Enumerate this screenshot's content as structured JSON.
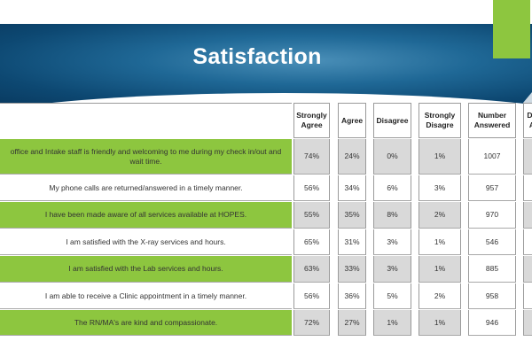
{
  "title": "Satisfaction",
  "colors": {
    "accent_green": "#8dc63f",
    "banner_blue": "#1f6896",
    "cell_gray": "#d9d9d9"
  },
  "table": {
    "headers": [
      "Strongly Agree",
      "Agree",
      "Disagree",
      "Strongly Disagre",
      "Number Answered",
      "Do A"
    ],
    "rows": [
      {
        "statement": "office and Intake staff is friendly and welcoming to me during my check in/out and wait time.",
        "values": [
          "74%",
          "24%",
          "0%",
          "1%",
          "1007",
          ""
        ]
      },
      {
        "statement": "My phone calls are returned/answered  in a timely manner.",
        "values": [
          "56%",
          "34%",
          "6%",
          "3%",
          "957",
          ""
        ]
      },
      {
        "statement": "I have been made aware of all services available at HOPES.",
        "values": [
          "55%",
          "35%",
          "8%",
          "2%",
          "970",
          ""
        ]
      },
      {
        "statement": "I am satisfied with the X-ray services and hours.",
        "values": [
          "65%",
          "31%",
          "3%",
          "1%",
          "546",
          ""
        ]
      },
      {
        "statement": "I am satisfied with the Lab services and hours.",
        "values": [
          "63%",
          "33%",
          "3%",
          "1%",
          "885",
          ""
        ]
      },
      {
        "statement": "I am able to receive a Clinic appointment  in a timely manner.",
        "values": [
          "56%",
          "36%",
          "5%",
          "2%",
          "958",
          ""
        ]
      },
      {
        "statement": "The RN/MA's are kind and compassionate.",
        "values": [
          "72%",
          "27%",
          "1%",
          "1%",
          "946",
          ""
        ]
      }
    ]
  }
}
